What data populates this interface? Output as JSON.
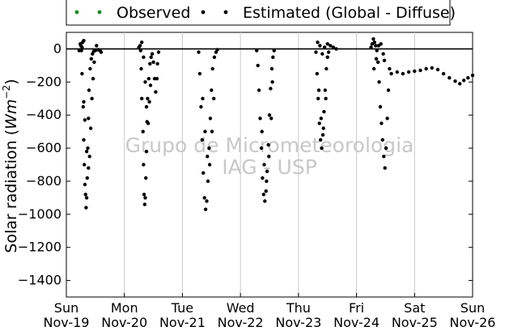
{
  "chart_data": {
    "type": "scatter",
    "xlabel": "",
    "ylabel": "Solar radiation ($Wm^{-2}$)",
    "ylabel_main": "Solar radiation (",
    "ylabel_unit": "Wm",
    "ylabel_exp": "−2",
    "ylabel_close": ")",
    "xlim_days": [
      0,
      7
    ],
    "ylim": [
      -1500,
      100
    ],
    "yticks": [
      0,
      -200,
      -400,
      -600,
      -800,
      -1000,
      -1200,
      -1400
    ],
    "x_ticks": [
      {
        "day": "Sun",
        "date": "Nov-19"
      },
      {
        "day": "Mon",
        "date": "Nov-20"
      },
      {
        "day": "Tue",
        "date": "Nov-21"
      },
      {
        "day": "Wed",
        "date": "Nov-22"
      },
      {
        "day": "Thu",
        "date": "Nov-23"
      },
      {
        "day": "Fri",
        "date": "Nov-24"
      },
      {
        "day": "Sat",
        "date": "Nov-25"
      },
      {
        "day": "Sun",
        "date": "Nov-26"
      }
    ],
    "grid": "vertical",
    "zero_line": true,
    "legend_position": "top",
    "series": [
      {
        "name": "Observed",
        "color": "#1a8c1a",
        "values": []
      },
      {
        "name": "Estimated (Global - Diffuse)",
        "color": "#000000",
        "values": [
          [
            0.26,
            -10
          ],
          [
            0.27,
            -150
          ],
          [
            0.29,
            -350
          ],
          [
            0.3,
            -550
          ],
          [
            0.31,
            -700
          ],
          [
            0.32,
            -820
          ],
          [
            0.33,
            -880
          ],
          [
            0.34,
            -960
          ],
          [
            0.35,
            -900
          ],
          [
            0.36,
            -780
          ],
          [
            0.37,
            -600
          ],
          [
            0.38,
            -420
          ],
          [
            0.39,
            -250
          ],
          [
            0.41,
            -120
          ],
          [
            0.43,
            -60
          ],
          [
            0.45,
            -30
          ],
          [
            0.47,
            -15
          ],
          [
            0.5,
            -10
          ],
          [
            0.52,
            20
          ],
          [
            0.55,
            -5
          ],
          [
            0.58,
            -10
          ],
          [
            0.6,
            -20
          ],
          [
            0.3,
            -320
          ],
          [
            0.32,
            -430
          ],
          [
            0.35,
            -620
          ],
          [
            0.38,
            -720
          ],
          [
            0.4,
            -650
          ],
          [
            0.42,
            -480
          ],
          [
            0.44,
            -300
          ],
          [
            0.46,
            -180
          ],
          [
            0.48,
            -80
          ],
          [
            0.22,
            -10
          ],
          [
            0.24,
            30
          ],
          [
            0.25,
            20
          ],
          [
            0.27,
            10
          ],
          [
            0.28,
            40
          ],
          [
            0.3,
            50
          ],
          [
            1.28,
            -10
          ],
          [
            1.29,
            -120
          ],
          [
            1.3,
            -300
          ],
          [
            1.32,
            -500
          ],
          [
            1.33,
            -700
          ],
          [
            1.34,
            -880
          ],
          [
            1.35,
            -940
          ],
          [
            1.36,
            -900
          ],
          [
            1.37,
            -780
          ],
          [
            1.38,
            -620
          ],
          [
            1.39,
            -440
          ],
          [
            1.4,
            -300
          ],
          [
            1.42,
            -180
          ],
          [
            1.44,
            -90
          ],
          [
            1.46,
            -50
          ],
          [
            1.48,
            -30
          ],
          [
            1.5,
            -80
          ],
          [
            1.52,
            -180
          ],
          [
            1.54,
            -260
          ],
          [
            1.56,
            -180
          ],
          [
            1.57,
            -90
          ],
          [
            1.59,
            -20
          ],
          [
            1.36,
            -200
          ],
          [
            1.38,
            -350
          ],
          [
            1.41,
            -450
          ],
          [
            1.43,
            -320
          ],
          [
            1.45,
            -220
          ],
          [
            1.25,
            10
          ],
          [
            1.27,
            20
          ],
          [
            1.3,
            40
          ],
          [
            1.33,
            -50
          ],
          [
            2.28,
            -20
          ],
          [
            2.3,
            -150
          ],
          [
            2.32,
            -350
          ],
          [
            2.34,
            -550
          ],
          [
            2.36,
            -750
          ],
          [
            2.38,
            -900
          ],
          [
            2.4,
            -970
          ],
          [
            2.42,
            -920
          ],
          [
            2.44,
            -800
          ],
          [
            2.46,
            -600
          ],
          [
            2.48,
            -420
          ],
          [
            2.5,
            -250
          ],
          [
            2.52,
            -120
          ],
          [
            2.55,
            -50
          ],
          [
            2.58,
            -20
          ],
          [
            2.6,
            -5
          ],
          [
            2.35,
            -300
          ],
          [
            2.39,
            -500
          ],
          [
            2.43,
            -650
          ],
          [
            2.47,
            -700
          ],
          [
            2.51,
            -500
          ],
          [
            2.54,
            -300
          ],
          [
            3.28,
            -10
          ],
          [
            3.3,
            -100
          ],
          [
            3.32,
            -250
          ],
          [
            3.34,
            -420
          ],
          [
            3.36,
            -600
          ],
          [
            3.38,
            -780
          ],
          [
            3.4,
            -880
          ],
          [
            3.42,
            -920
          ],
          [
            3.44,
            -860
          ],
          [
            3.46,
            -740
          ],
          [
            3.48,
            -580
          ],
          [
            3.5,
            -400
          ],
          [
            3.52,
            -240
          ],
          [
            3.54,
            -120
          ],
          [
            3.56,
            -50
          ],
          [
            3.58,
            -10
          ],
          [
            3.37,
            -500
          ],
          [
            3.41,
            -700
          ],
          [
            3.45,
            -800
          ],
          [
            3.49,
            -650
          ],
          [
            3.53,
            -420
          ],
          [
            3.55,
            -200
          ],
          [
            4.3,
            -20
          ],
          [
            4.32,
            -150
          ],
          [
            4.34,
            -300
          ],
          [
            4.36,
            -450
          ],
          [
            4.38,
            -550
          ],
          [
            4.4,
            -600
          ],
          [
            4.42,
            -520
          ],
          [
            4.44,
            -380
          ],
          [
            4.46,
            -250
          ],
          [
            4.48,
            -120
          ],
          [
            4.5,
            -50
          ],
          [
            4.52,
            -20
          ],
          [
            4.35,
            -250
          ],
          [
            4.39,
            -420
          ],
          [
            4.43,
            -480
          ],
          [
            4.47,
            -300
          ],
          [
            4.33,
            40
          ],
          [
            4.37,
            20
          ],
          [
            4.41,
            -30
          ],
          [
            4.45,
            10
          ],
          [
            4.5,
            30
          ],
          [
            4.55,
            20
          ],
          [
            4.6,
            10
          ],
          [
            4.65,
            0
          ],
          [
            5.25,
            10
          ],
          [
            5.27,
            30
          ],
          [
            5.29,
            60
          ],
          [
            5.31,
            40
          ],
          [
            5.33,
            20
          ],
          [
            5.35,
            -10
          ],
          [
            5.37,
            -80
          ],
          [
            5.39,
            -200
          ],
          [
            5.41,
            -350
          ],
          [
            5.43,
            -450
          ],
          [
            5.45,
            -550
          ],
          [
            5.47,
            -650
          ],
          [
            5.49,
            -720
          ],
          [
            5.51,
            -600
          ],
          [
            5.53,
            -420
          ],
          [
            5.55,
            -250
          ],
          [
            5.57,
            -120
          ],
          [
            5.3,
            -120
          ],
          [
            5.34,
            -60
          ],
          [
            5.38,
            20
          ],
          [
            5.42,
            30
          ],
          [
            5.46,
            -30
          ],
          [
            5.48,
            -70
          ],
          [
            5.6,
            -150
          ],
          [
            5.7,
            -140
          ],
          [
            5.8,
            -150
          ],
          [
            5.9,
            -140
          ],
          [
            6.0,
            -135
          ],
          [
            6.1,
            -130
          ],
          [
            6.2,
            -120
          ],
          [
            6.3,
            -115
          ],
          [
            6.4,
            -125
          ],
          [
            6.5,
            -150
          ],
          [
            6.6,
            -175
          ],
          [
            6.7,
            -195
          ],
          [
            6.78,
            -210
          ],
          [
            6.85,
            -190
          ],
          [
            6.92,
            -175
          ],
          [
            7.0,
            -160
          ]
        ]
      }
    ]
  },
  "watermark": {
    "line1": "Grupo de Micrometeorologia",
    "line2": "IAG - USP"
  }
}
